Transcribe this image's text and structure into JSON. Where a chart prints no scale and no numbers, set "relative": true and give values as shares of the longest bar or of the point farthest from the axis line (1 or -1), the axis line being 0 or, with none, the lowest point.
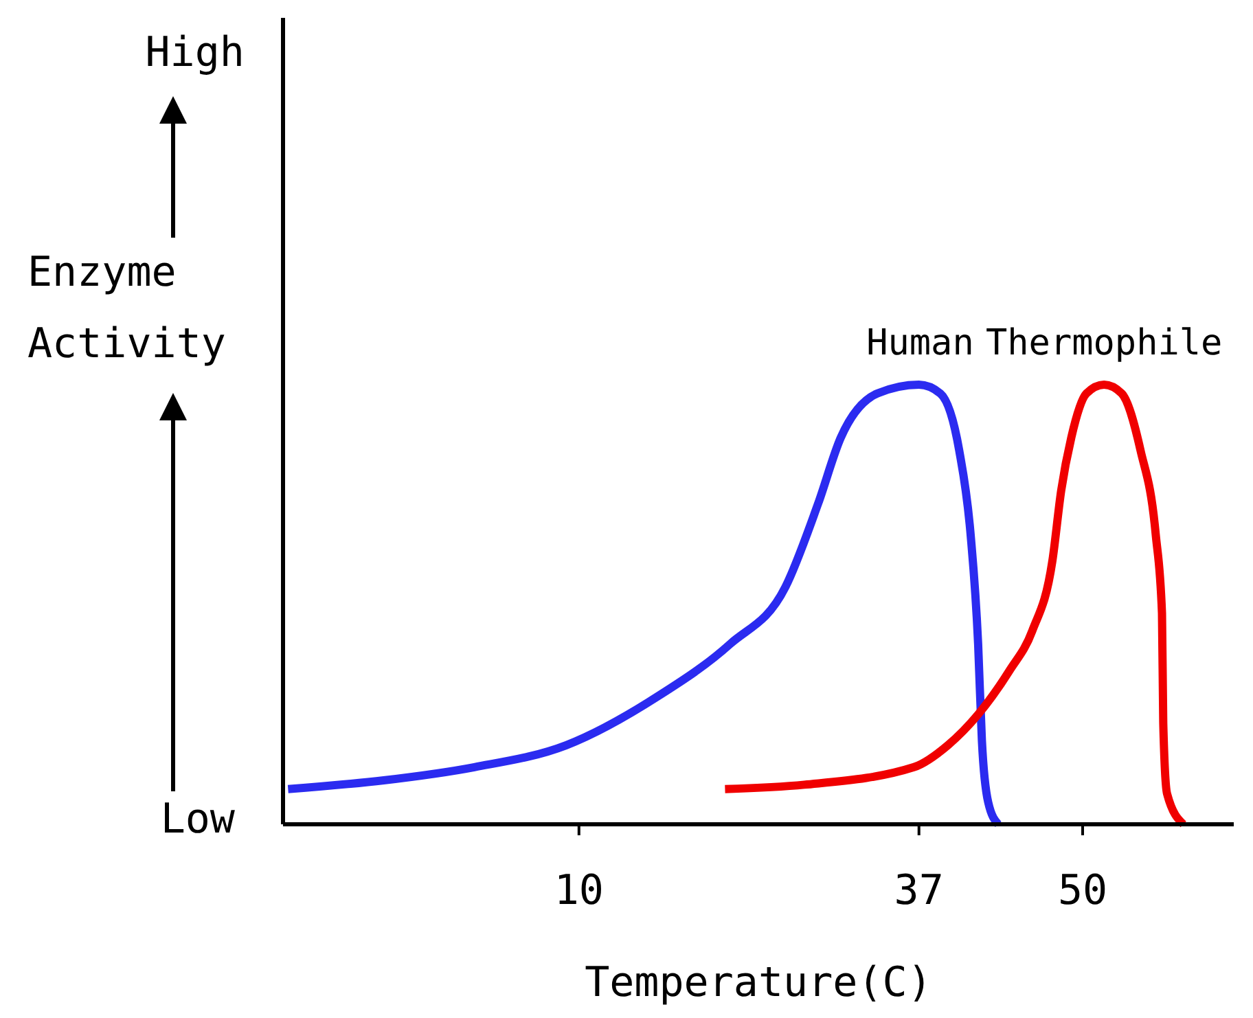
{
  "chart_data": {
    "type": "line",
    "relative": true,
    "xlabel": "Temperature(C)",
    "ylabel": "Enzyme Activity",
    "annotations": [
      "High",
      "Low"
    ],
    "xlim": [
      -13.5,
      62
    ],
    "xticks": [
      10,
      37,
      50
    ],
    "line_style": "solid",
    "marker": "none",
    "series": [
      {
        "name": "Human",
        "color": "#2b2bf0",
        "x": [
          -13.1,
          -5.5,
          1.7,
          9.0,
          16.2,
          22.0,
          26.4,
          29.0,
          30.8,
          33.7,
          37,
          38.7,
          40.2,
          41.1,
          41.7,
          42.0,
          42.5,
          43.3
        ],
        "values": [
          0.08,
          0.1,
          0.13,
          0.18,
          0.29,
          0.41,
          0.54,
          0.73,
          0.88,
          0.98,
          1,
          0.98,
          0.85,
          0.66,
          0.41,
          0.19,
          0.05,
          0
        ]
      },
      {
        "name": "Thermophile",
        "color": "#f00000",
        "x": [
          21.6,
          27.9,
          36.6,
          39.3,
          41.7,
          44.2,
          46.0,
          47.6,
          48.3,
          49.1,
          50.3,
          51.7,
          53.1,
          54.6,
          55.8,
          56.3,
          56.4,
          56.7,
          58.0
        ],
        "values": [
          0.08,
          0.09,
          0.13,
          0.18,
          0.25,
          0.35,
          0.44,
          0.6,
          0.76,
          0.88,
          0.98,
          1,
          0.98,
          0.85,
          0.66,
          0.48,
          0.23,
          0.07,
          0
        ]
      }
    ]
  }
}
